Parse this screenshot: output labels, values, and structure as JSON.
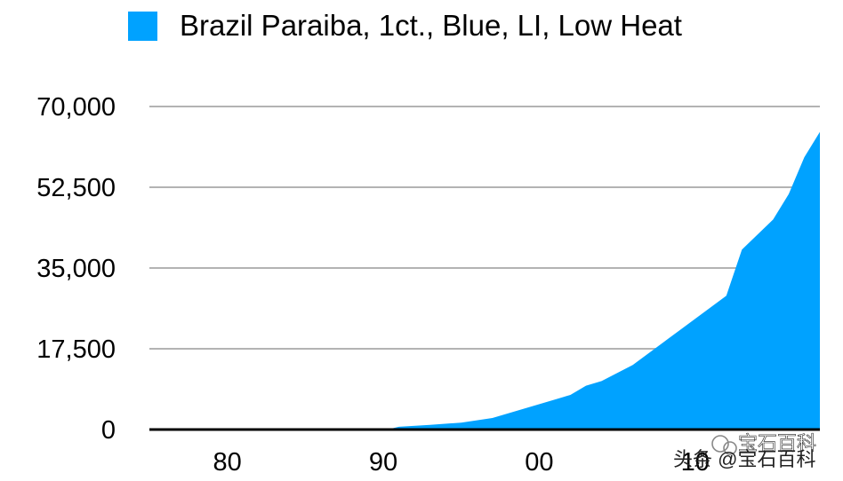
{
  "chart_data": {
    "type": "area",
    "series": [
      {
        "name": "Brazil Paraiba, 1ct., Blue, LI, Low Heat",
        "color": "#00a2ff",
        "points": [
          [
            1975,
            0
          ],
          [
            1980,
            0
          ],
          [
            1985,
            0
          ],
          [
            1990,
            0
          ],
          [
            1990.5,
            200
          ],
          [
            1991,
            600
          ],
          [
            1993,
            1000
          ],
          [
            1995,
            1500
          ],
          [
            1997,
            2500
          ],
          [
            1999,
            4500
          ],
          [
            2001,
            6500
          ],
          [
            2002,
            7500
          ],
          [
            2003,
            9500
          ],
          [
            2004,
            10500
          ],
          [
            2006,
            14000
          ],
          [
            2008,
            19000
          ],
          [
            2010,
            24000
          ],
          [
            2012,
            29000
          ],
          [
            2013,
            39000
          ],
          [
            2015,
            45500
          ],
          [
            2016,
            51000
          ],
          [
            2017,
            59000
          ],
          [
            2018,
            64500
          ]
        ]
      }
    ],
    "xlim": [
      1975,
      2018
    ],
    "ylim": [
      0,
      70000
    ],
    "yticks": [
      "0",
      "17,500",
      "35,000",
      "52,500",
      "70,000"
    ],
    "ytick_values": [
      0,
      17500,
      35000,
      52500,
      70000
    ],
    "xticks": [
      "80",
      "90",
      "00",
      "10"
    ],
    "xtick_values": [
      1980,
      1990,
      2000,
      2010
    ],
    "grid": true,
    "legend": "top"
  },
  "watermark": {
    "text": "头条 @宝石百科",
    "sub_text": "宝石百科"
  }
}
